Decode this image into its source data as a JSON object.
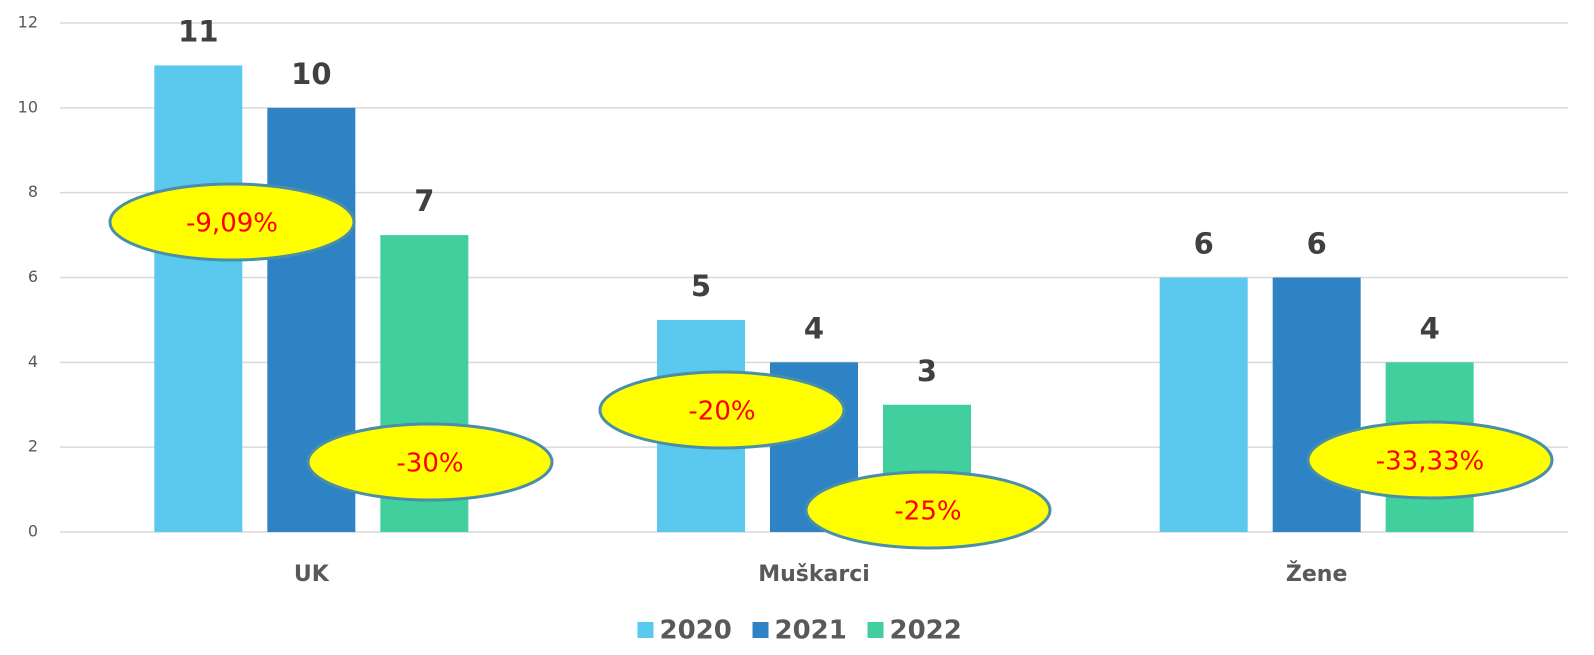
{
  "chart_data": {
    "type": "bar",
    "categories": [
      "UK",
      "Muškarci",
      "Žene"
    ],
    "series": [
      {
        "name": "2020",
        "color": "#5bc8ee",
        "values": [
          11,
          5,
          6
        ]
      },
      {
        "name": "2021",
        "color": "#2e83c4",
        "values": [
          10,
          4,
          6
        ]
      },
      {
        "name": "2022",
        "color": "#42cf9e",
        "values": [
          7,
          3,
          4
        ]
      }
    ],
    "ylim": [
      0,
      12
    ],
    "yticks": [
      0,
      2,
      4,
      6,
      8,
      10,
      12
    ],
    "grid": true,
    "legend": "bottom",
    "annotations": [
      "-9,09%",
      "-30%",
      "-20%",
      "-25%",
      "-33,33%"
    ]
  }
}
